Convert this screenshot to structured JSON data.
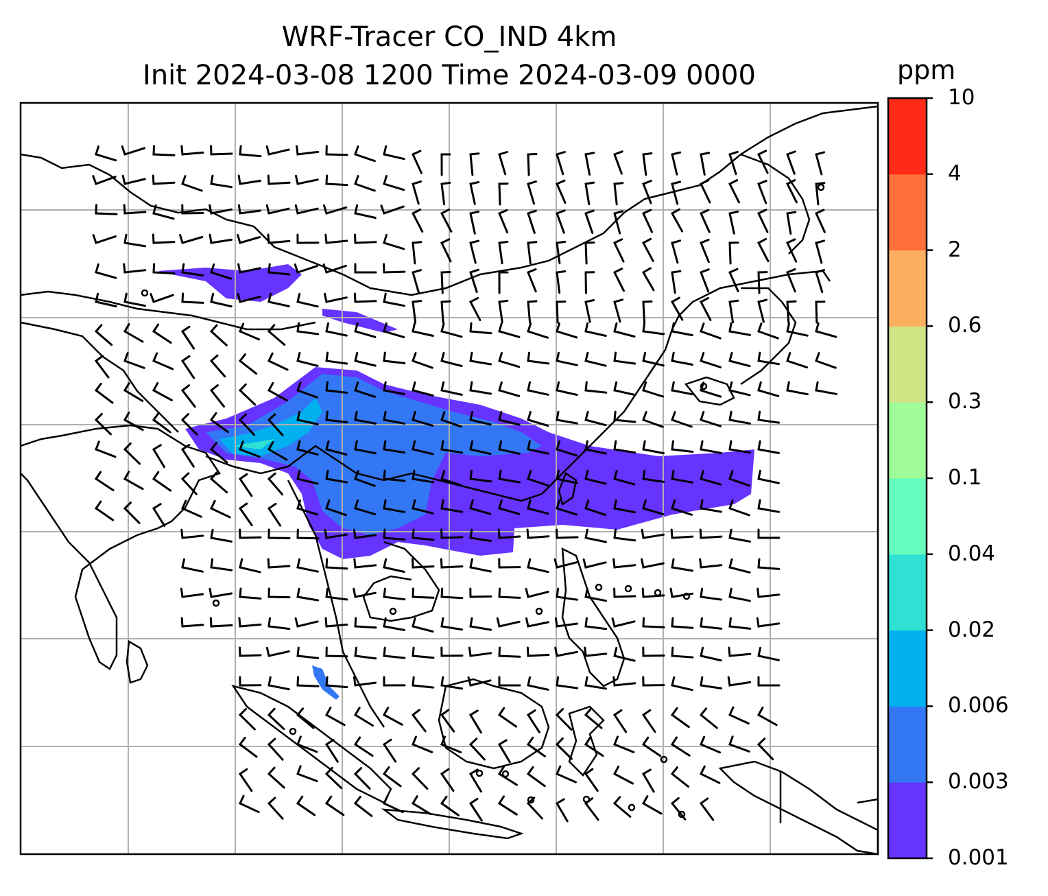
{
  "title": {
    "line1": "WRF-Tracer CO_IND 4km",
    "line2": "Init 2024-03-08 1200 Time 2024-03-09 0000"
  },
  "colorbar": {
    "units": "ppm",
    "levels": [
      "0.001",
      "0.003",
      "0.006",
      "0.02",
      "0.04",
      "0.1",
      "0.3",
      "0.6",
      "2",
      "4",
      "10"
    ],
    "colors": [
      "#6633ff",
      "#3377f5",
      "#00b0ef",
      "#30e0d2",
      "#66fcbe",
      "#9ffc97",
      "#d0e385",
      "#fdaf60",
      "#ff6f3a",
      "#ff2a18"
    ]
  },
  "map": {
    "gridline_color": "#b0b0b0",
    "coastline_color": "#000000",
    "field_color_primary": "#6633ff",
    "field_color_secondary": "#3377f5"
  }
}
